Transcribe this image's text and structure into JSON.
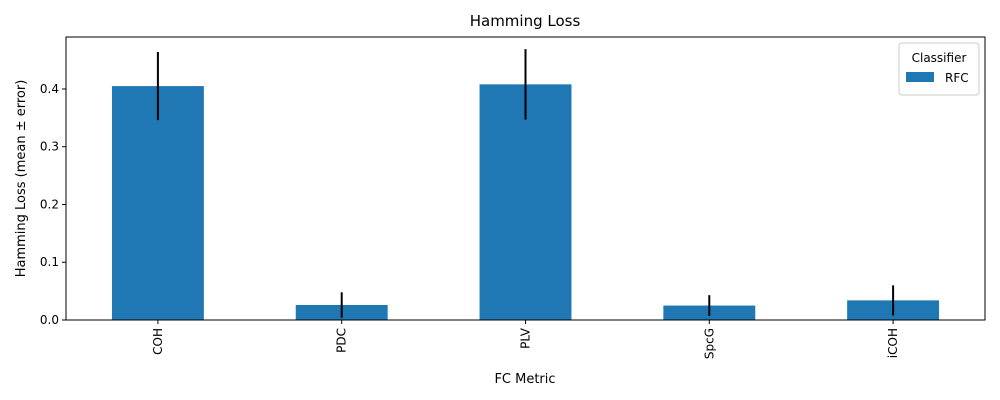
{
  "chart_data": {
    "type": "bar",
    "title": "Hamming Loss",
    "xlabel": "FC Metric",
    "ylabel": "Hamming Loss (mean ± error)",
    "categories": [
      "COH",
      "PDC",
      "PLV",
      "SpcG",
      "iCOH"
    ],
    "series": [
      {
        "name": "RFC",
        "values": [
          0.405,
          0.026,
          0.408,
          0.025,
          0.034
        ],
        "errors": [
          0.059,
          0.022,
          0.061,
          0.018,
          0.026
        ],
        "color": "#1f77b4"
      }
    ],
    "ylim": [
      0,
      0.49
    ],
    "yticks": [
      0.0,
      0.1,
      0.2,
      0.3,
      0.4
    ],
    "ytick_labels": [
      "0.0",
      "0.1",
      "0.2",
      "0.3",
      "0.4"
    ],
    "legend": {
      "title": "Classifier",
      "position": "top-right"
    },
    "grid": false,
    "error_bar_color": "#000000"
  }
}
